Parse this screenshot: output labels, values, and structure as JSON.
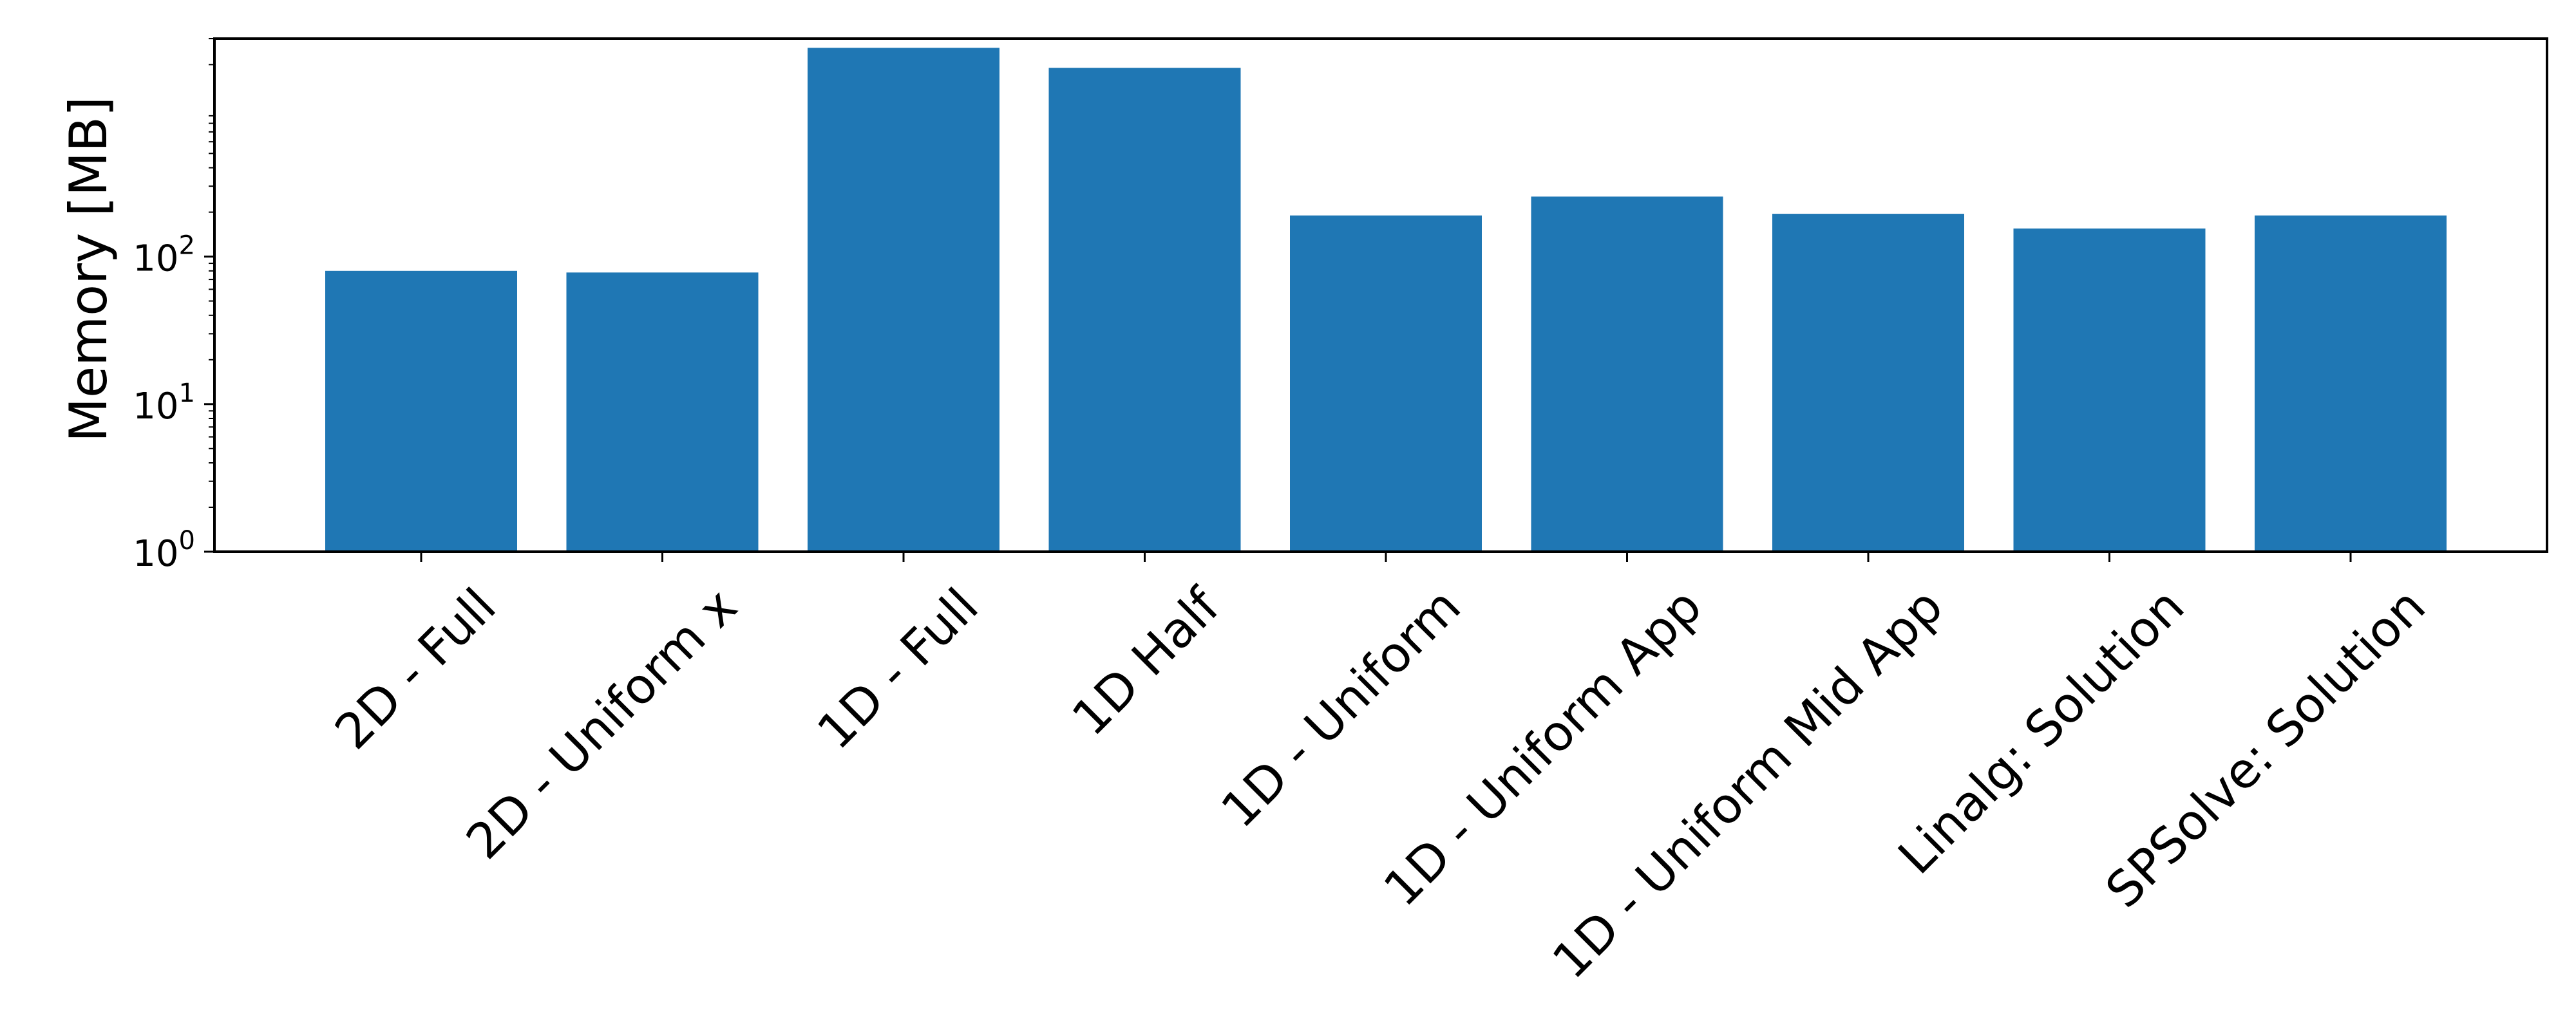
{
  "chart_data": {
    "type": "bar",
    "title": "",
    "xlabel": "",
    "ylabel": "Memory [MB]",
    "yscale": "log",
    "ylim": [
      1,
      3000
    ],
    "yticks": [
      {
        "value": 1,
        "base": "10",
        "exp": "0"
      },
      {
        "value": 10,
        "base": "10",
        "exp": "1"
      },
      {
        "value": 100,
        "base": "10",
        "exp": "2"
      }
    ],
    "categories": [
      "2D - Full",
      "2D - Uniform x",
      "1D - Full",
      "1D Half",
      "1D - Uniform",
      "1D - Uniform App",
      "1D - Uniform Mid App",
      "Linalg: Solution",
      "SPSolve: Solution"
    ],
    "values": [
      80,
      78,
      2600,
      1900,
      190,
      255,
      195,
      155,
      190
    ],
    "bar_color": "#1f77b4",
    "grid": false,
    "legend": "none"
  }
}
